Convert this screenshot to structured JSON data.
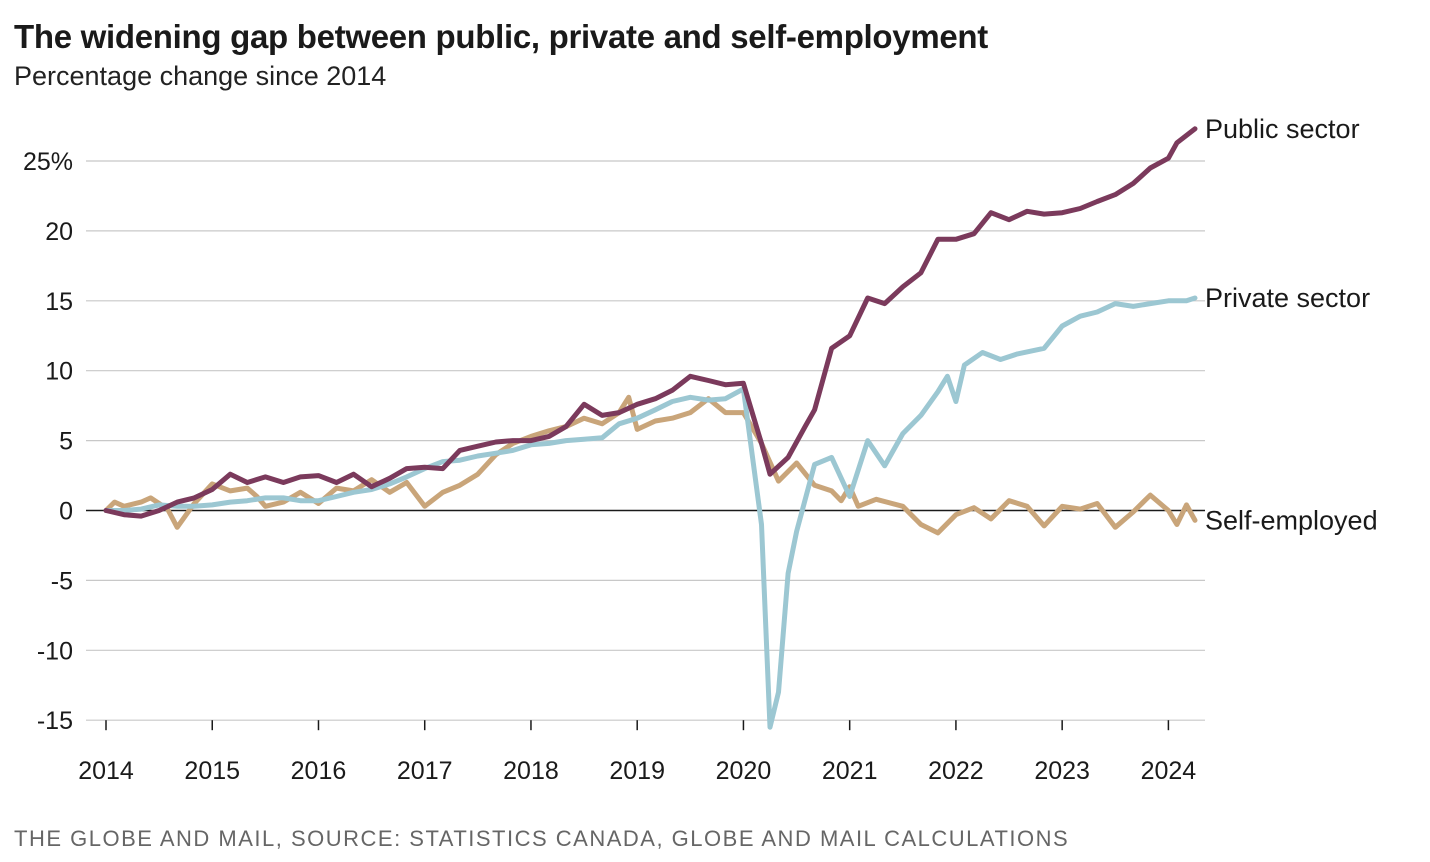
{
  "header": {
    "title": "The widening gap between public, private and self-employment",
    "subtitle": "Percentage change since 2014"
  },
  "footer": {
    "source": "THE GLOBE AND MAIL, SOURCE: STATISTICS CANADA, GLOBE AND MAIL CALCULATIONS"
  },
  "chart_data": {
    "type": "line",
    "title": "The widening gap between public, private and self-employment",
    "subtitle": "Percentage change since 2014",
    "xlabel": "",
    "ylabel": "",
    "xlim": [
      2014,
      2024.25
    ],
    "ylim": [
      -15,
      27.5
    ],
    "x_ticks": [
      "2014",
      "2015",
      "2016",
      "2017",
      "2018",
      "2019",
      "2020",
      "2021",
      "2022",
      "2023",
      "2024"
    ],
    "y_ticks": [
      {
        "value": 25,
        "label": "25%"
      },
      {
        "value": 20,
        "label": "20"
      },
      {
        "value": 15,
        "label": "15"
      },
      {
        "value": 10,
        "label": "10"
      },
      {
        "value": 5,
        "label": "5"
      },
      {
        "value": 0,
        "label": "0"
      },
      {
        "value": -5,
        "label": "-5"
      },
      {
        "value": -10,
        "label": "-10"
      },
      {
        "value": -15,
        "label": "-15"
      }
    ],
    "grid": true,
    "legend": "direct labels at right end of lines",
    "series": [
      {
        "name": "Public sector",
        "color": "#7b3a5c",
        "points": [
          [
            2014.0,
            0.0
          ],
          [
            2014.17,
            -0.3
          ],
          [
            2014.33,
            -0.4
          ],
          [
            2014.5,
            0.0
          ],
          [
            2014.67,
            0.6
          ],
          [
            2014.83,
            0.9
          ],
          [
            2015.0,
            1.5
          ],
          [
            2015.17,
            2.6
          ],
          [
            2015.33,
            2.0
          ],
          [
            2015.5,
            2.4
          ],
          [
            2015.67,
            2.0
          ],
          [
            2015.83,
            2.4
          ],
          [
            2016.0,
            2.5
          ],
          [
            2016.17,
            2.0
          ],
          [
            2016.33,
            2.6
          ],
          [
            2016.5,
            1.7
          ],
          [
            2016.67,
            2.3
          ],
          [
            2016.83,
            3.0
          ],
          [
            2017.0,
            3.1
          ],
          [
            2017.17,
            3.0
          ],
          [
            2017.33,
            4.3
          ],
          [
            2017.5,
            4.6
          ],
          [
            2017.67,
            4.9
          ],
          [
            2017.83,
            5.0
          ],
          [
            2018.0,
            5.0
          ],
          [
            2018.17,
            5.3
          ],
          [
            2018.33,
            6.0
          ],
          [
            2018.5,
            7.6
          ],
          [
            2018.67,
            6.8
          ],
          [
            2018.83,
            7.0
          ],
          [
            2019.0,
            7.6
          ],
          [
            2019.17,
            8.0
          ],
          [
            2019.33,
            8.6
          ],
          [
            2019.5,
            9.6
          ],
          [
            2019.67,
            9.3
          ],
          [
            2019.83,
            9.0
          ],
          [
            2020.0,
            9.1
          ],
          [
            2020.17,
            4.8
          ],
          [
            2020.25,
            2.6
          ],
          [
            2020.42,
            3.8
          ],
          [
            2020.58,
            6.0
          ],
          [
            2020.67,
            7.2
          ],
          [
            2020.83,
            11.6
          ],
          [
            2021.0,
            12.5
          ],
          [
            2021.17,
            15.2
          ],
          [
            2021.33,
            14.8
          ],
          [
            2021.5,
            16.0
          ],
          [
            2021.67,
            17.0
          ],
          [
            2021.83,
            19.4
          ],
          [
            2022.0,
            19.4
          ],
          [
            2022.17,
            19.8
          ],
          [
            2022.33,
            21.3
          ],
          [
            2022.5,
            20.8
          ],
          [
            2022.67,
            21.4
          ],
          [
            2022.83,
            21.2
          ],
          [
            2023.0,
            21.3
          ],
          [
            2023.17,
            21.6
          ],
          [
            2023.33,
            22.1
          ],
          [
            2023.5,
            22.6
          ],
          [
            2023.67,
            23.4
          ],
          [
            2023.83,
            24.5
          ],
          [
            2024.0,
            25.2
          ],
          [
            2024.08,
            26.3
          ],
          [
            2024.25,
            27.3
          ]
        ]
      },
      {
        "name": "Private sector",
        "color": "#9cc7d2",
        "points": [
          [
            2014.0,
            0.0
          ],
          [
            2014.17,
            0.0
          ],
          [
            2014.33,
            0.1
          ],
          [
            2014.5,
            0.4
          ],
          [
            2014.67,
            0.3
          ],
          [
            2014.83,
            0.3
          ],
          [
            2015.0,
            0.4
          ],
          [
            2015.17,
            0.6
          ],
          [
            2015.33,
            0.7
          ],
          [
            2015.5,
            0.9
          ],
          [
            2015.67,
            0.9
          ],
          [
            2015.83,
            0.7
          ],
          [
            2016.0,
            0.7
          ],
          [
            2016.17,
            1.0
          ],
          [
            2016.33,
            1.3
          ],
          [
            2016.5,
            1.5
          ],
          [
            2016.67,
            1.9
          ],
          [
            2016.83,
            2.4
          ],
          [
            2017.0,
            3.0
          ],
          [
            2017.17,
            3.5
          ],
          [
            2017.33,
            3.6
          ],
          [
            2017.5,
            3.9
          ],
          [
            2017.67,
            4.1
          ],
          [
            2017.83,
            4.3
          ],
          [
            2018.0,
            4.7
          ],
          [
            2018.17,
            4.8
          ],
          [
            2018.33,
            5.0
          ],
          [
            2018.5,
            5.1
          ],
          [
            2018.67,
            5.2
          ],
          [
            2018.83,
            6.2
          ],
          [
            2019.0,
            6.6
          ],
          [
            2019.17,
            7.2
          ],
          [
            2019.33,
            7.8
          ],
          [
            2019.5,
            8.1
          ],
          [
            2019.67,
            7.9
          ],
          [
            2019.83,
            8.0
          ],
          [
            2020.0,
            8.7
          ],
          [
            2020.17,
            -1.0
          ],
          [
            2020.25,
            -15.5
          ],
          [
            2020.33,
            -13.0
          ],
          [
            2020.42,
            -4.5
          ],
          [
            2020.5,
            -1.5
          ],
          [
            2020.67,
            3.3
          ],
          [
            2020.83,
            3.8
          ],
          [
            2021.0,
            1.0
          ],
          [
            2021.17,
            5.0
          ],
          [
            2021.33,
            3.2
          ],
          [
            2021.5,
            5.5
          ],
          [
            2021.67,
            6.8
          ],
          [
            2021.83,
            8.5
          ],
          [
            2021.92,
            9.6
          ],
          [
            2022.0,
            7.8
          ],
          [
            2022.08,
            10.4
          ],
          [
            2022.25,
            11.3
          ],
          [
            2022.42,
            10.8
          ],
          [
            2022.58,
            11.2
          ],
          [
            2022.83,
            11.6
          ],
          [
            2023.0,
            13.2
          ],
          [
            2023.17,
            13.9
          ],
          [
            2023.33,
            14.2
          ],
          [
            2023.5,
            14.8
          ],
          [
            2023.67,
            14.6
          ],
          [
            2023.83,
            14.8
          ],
          [
            2024.0,
            15.0
          ],
          [
            2024.17,
            15.0
          ],
          [
            2024.25,
            15.2
          ]
        ]
      },
      {
        "name": "Self-employed",
        "color": "#c9a57a",
        "points": [
          [
            2014.0,
            0.0
          ],
          [
            2014.08,
            0.6
          ],
          [
            2014.17,
            0.3
          ],
          [
            2014.33,
            0.6
          ],
          [
            2014.42,
            0.9
          ],
          [
            2014.58,
            0.1
          ],
          [
            2014.67,
            -1.2
          ],
          [
            2014.83,
            0.5
          ],
          [
            2015.0,
            1.9
          ],
          [
            2015.17,
            1.4
          ],
          [
            2015.33,
            1.6
          ],
          [
            2015.42,
            1.0
          ],
          [
            2015.5,
            0.3
          ],
          [
            2015.67,
            0.6
          ],
          [
            2015.83,
            1.3
          ],
          [
            2016.0,
            0.5
          ],
          [
            2016.17,
            1.6
          ],
          [
            2016.33,
            1.4
          ],
          [
            2016.5,
            2.2
          ],
          [
            2016.67,
            1.3
          ],
          [
            2016.83,
            2.0
          ],
          [
            2017.0,
            0.3
          ],
          [
            2017.17,
            1.3
          ],
          [
            2017.33,
            1.8
          ],
          [
            2017.5,
            2.6
          ],
          [
            2017.67,
            4.0
          ],
          [
            2017.83,
            4.8
          ],
          [
            2018.0,
            5.3
          ],
          [
            2018.17,
            5.7
          ],
          [
            2018.33,
            6.0
          ],
          [
            2018.5,
            6.6
          ],
          [
            2018.67,
            6.2
          ],
          [
            2018.83,
            7.0
          ],
          [
            2018.92,
            8.1
          ],
          [
            2019.0,
            5.8
          ],
          [
            2019.17,
            6.4
          ],
          [
            2019.33,
            6.6
          ],
          [
            2019.5,
            7.0
          ],
          [
            2019.67,
            8.0
          ],
          [
            2019.83,
            7.0
          ],
          [
            2020.0,
            7.0
          ],
          [
            2020.17,
            4.8
          ],
          [
            2020.33,
            2.1
          ],
          [
            2020.5,
            3.4
          ],
          [
            2020.67,
            1.8
          ],
          [
            2020.83,
            1.4
          ],
          [
            2020.92,
            0.7
          ],
          [
            2021.0,
            1.7
          ],
          [
            2021.08,
            0.3
          ],
          [
            2021.25,
            0.8
          ],
          [
            2021.5,
            0.3
          ],
          [
            2021.67,
            -1.0
          ],
          [
            2021.83,
            -1.6
          ],
          [
            2022.0,
            -0.3
          ],
          [
            2022.17,
            0.2
          ],
          [
            2022.33,
            -0.6
          ],
          [
            2022.5,
            0.7
          ],
          [
            2022.67,
            0.3
          ],
          [
            2022.83,
            -1.1
          ],
          [
            2023.0,
            0.3
          ],
          [
            2023.17,
            0.1
          ],
          [
            2023.33,
            0.5
          ],
          [
            2023.5,
            -1.2
          ],
          [
            2023.67,
            -0.1
          ],
          [
            2023.83,
            1.1
          ],
          [
            2024.0,
            0.0
          ],
          [
            2024.08,
            -1.0
          ],
          [
            2024.17,
            0.4
          ],
          [
            2024.25,
            -0.7
          ]
        ]
      }
    ]
  }
}
